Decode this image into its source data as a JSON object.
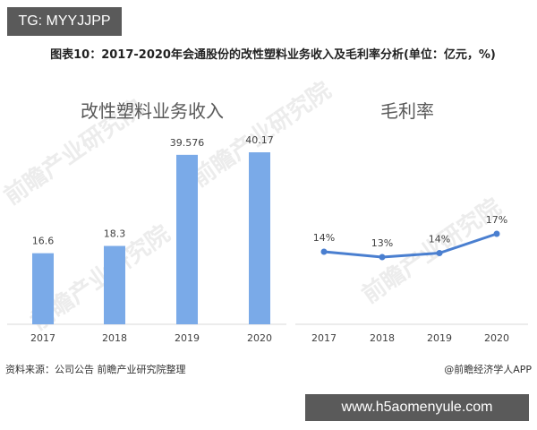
{
  "badges": {
    "top_left": "TG: MYYJJPP",
    "bottom_right": "www.h5aomenyule.com"
  },
  "title": "图表10：2017-2020年会通股份的改性塑料业务收入及毛利率分析(单位：亿元，%)",
  "watermark_text": "前瞻产业研究院",
  "footer": {
    "source": "资料来源：公司公告 前瞻产业研究院整理",
    "credit": "@前瞻经济学人APP"
  },
  "colors": {
    "bar": "#7aaae8",
    "line": "#4a7fd0",
    "axis": "#d9d9d9",
    "badge_bg": "#5a5a5a"
  },
  "chart_data": [
    {
      "type": "bar",
      "title": "改性塑料业务收入",
      "categories": [
        "2017",
        "2018",
        "2019",
        "2020"
      ],
      "values": [
        16.6,
        18.3,
        39.576,
        40.17
      ],
      "labels": [
        "16.6",
        "18.3",
        "39.576",
        "40.17"
      ],
      "xlabel": "",
      "ylabel": "亿元",
      "ylim": [
        0,
        46
      ],
      "grid": false,
      "legend": null
    },
    {
      "type": "line",
      "title": "毛利率",
      "categories": [
        "2017",
        "2018",
        "2019",
        "2020"
      ],
      "values": [
        14,
        13,
        14,
        17
      ],
      "labels": [
        "14%",
        "13%",
        "14%",
        "17%"
      ],
      "xlabel": "",
      "ylabel": "%",
      "grid": false,
      "legend": null
    }
  ]
}
